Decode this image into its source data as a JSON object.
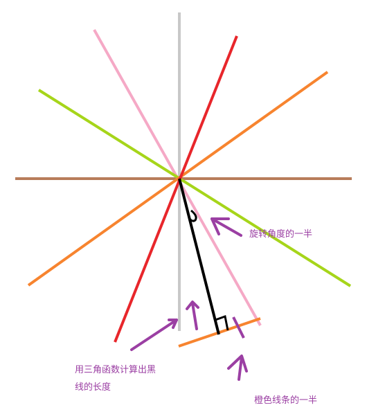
{
  "annotations": {
    "rotation_half": "旋转角度的一半",
    "trig_line1": "用三角函数计算出黑",
    "trig_line2": "线的长度",
    "orange_half": "橙色线条的一半"
  },
  "colors": {
    "gray": "#c8c8c8",
    "brown": "#b87c5a",
    "red": "#e8262b",
    "pink": "#f5a9c6",
    "orange": "#f7842f",
    "lime": "#a6d51a",
    "black": "#000000",
    "purple": "#9b3fa3"
  }
}
